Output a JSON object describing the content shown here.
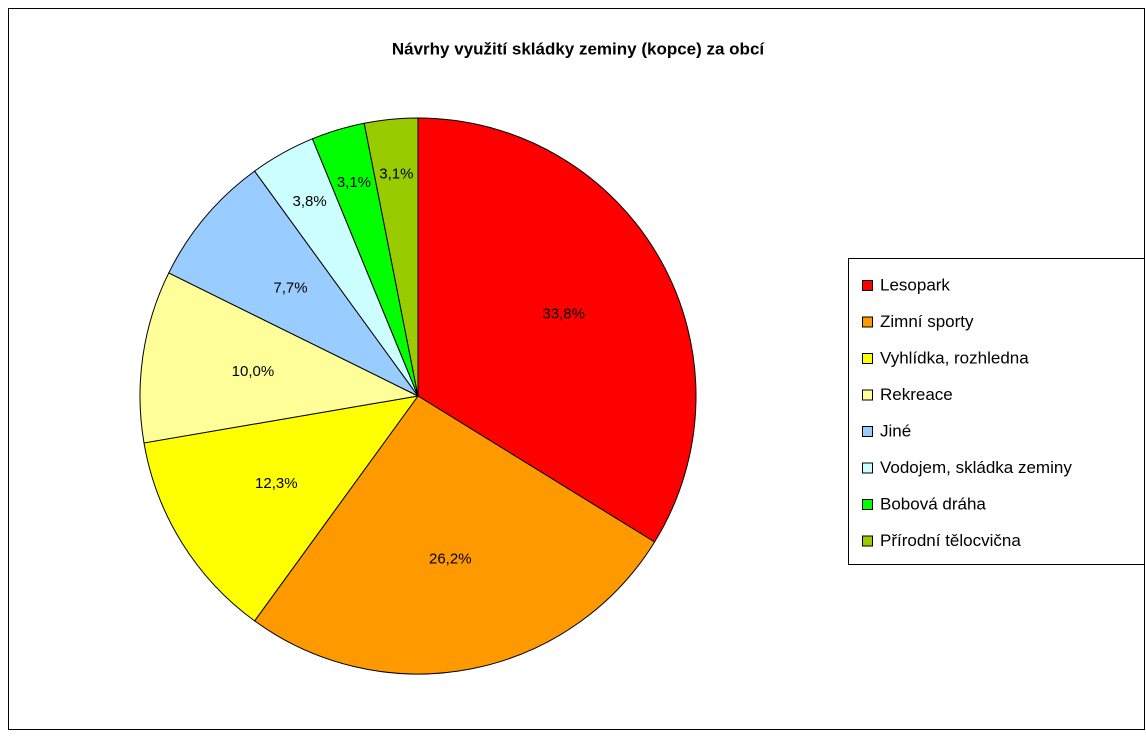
{
  "chart_data": {
    "type": "pie",
    "title": "Návrhy využití skládky zeminy (kopce) za obcí",
    "categories": [
      "Lesopark",
      "Zimní sporty",
      "Vyhlídka, rozhledna",
      "Rekreace",
      "Jiné",
      "Vodojem, skládka zeminy",
      "Bobová dráha",
      "Přírodní tělocvična"
    ],
    "values": [
      33.8,
      26.2,
      12.3,
      10.0,
      7.7,
      3.8,
      3.1,
      3.1
    ],
    "value_labels": [
      "33,8%",
      "26,2%",
      "12,3%",
      "10,0%",
      "7,7%",
      "3,8%",
      "3,1%",
      "3,1%"
    ],
    "colors": [
      "#ff0000",
      "#ff9900",
      "#ffff00",
      "#ffff99",
      "#99ccff",
      "#ccffff",
      "#00ff00",
      "#99cc00"
    ],
    "legend": "right"
  }
}
